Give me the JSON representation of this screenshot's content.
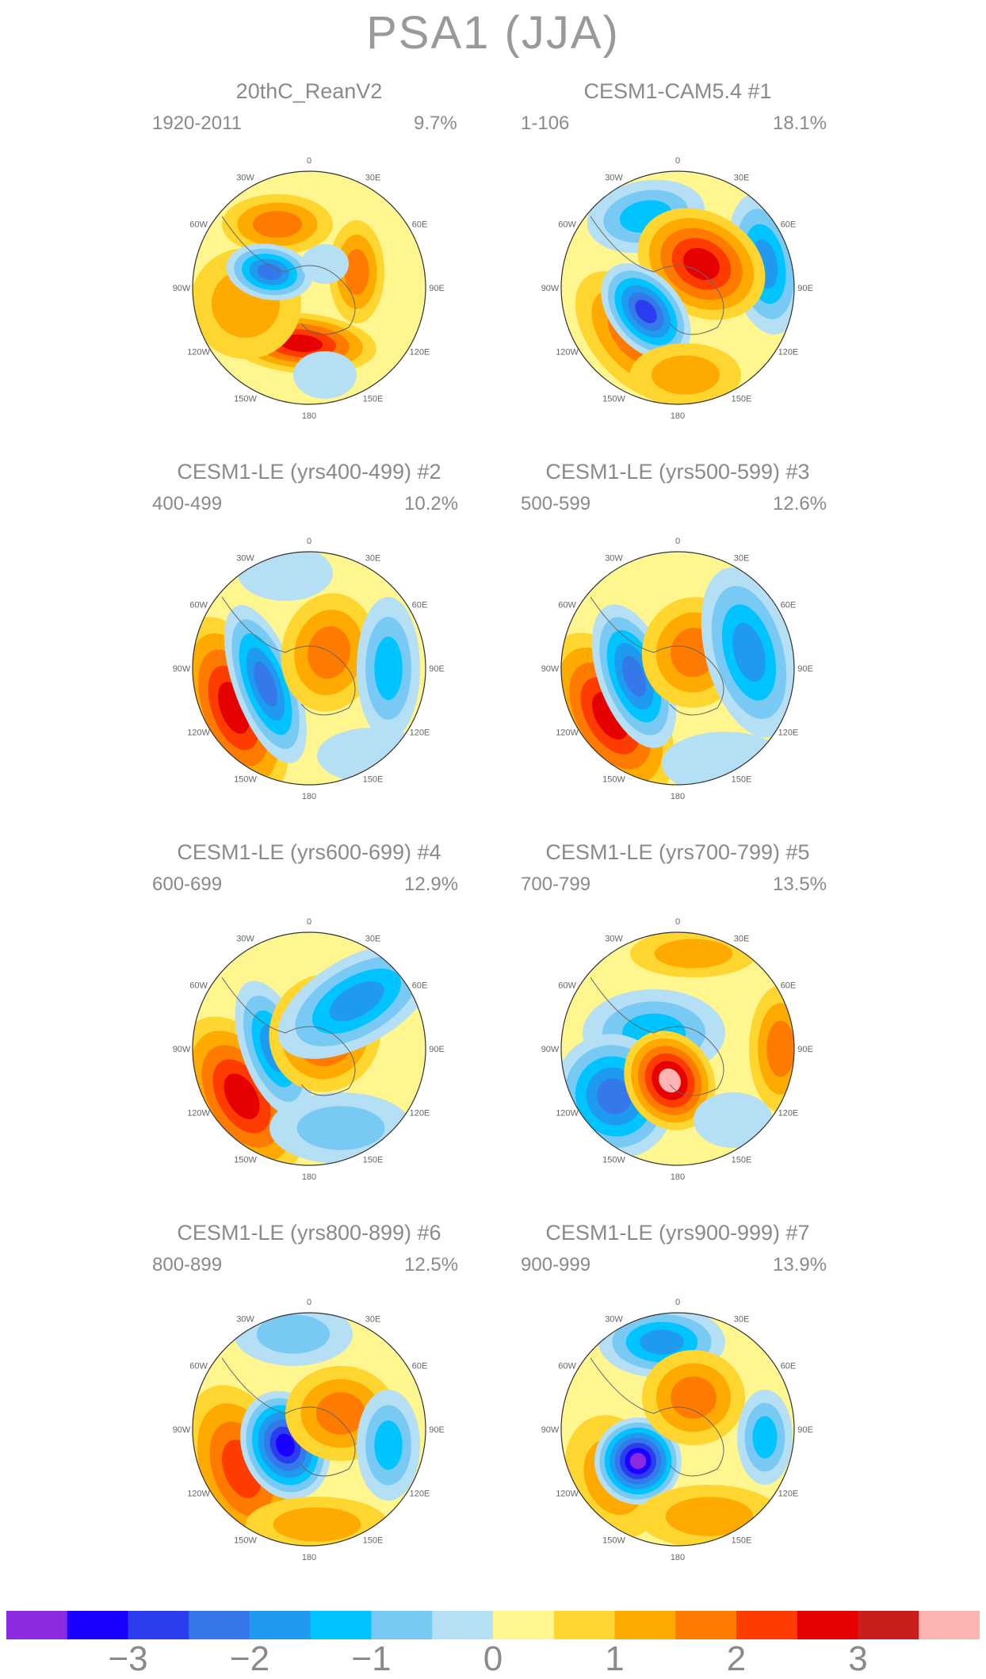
{
  "title": "PSA1 (JJA)",
  "panels": [
    {
      "title": "20thC_ReanV2",
      "years": "1920-2011",
      "percent": "9.7%"
    },
    {
      "title": "CESM1-CAM5.4        #1",
      "years": "1-106",
      "percent": "18.1%"
    },
    {
      "title": "CESM1-LE (yrs400-499) #2",
      "years": "400-499",
      "percent": "10.2%"
    },
    {
      "title": "CESM1-LE (yrs500-599) #3",
      "years": "500-599",
      "percent": "12.6%"
    },
    {
      "title": "CESM1-LE (yrs600-699) #4",
      "years": "600-699",
      "percent": "12.9%"
    },
    {
      "title": "CESM1-LE (yrs700-799) #5",
      "years": "700-799",
      "percent": "13.5%"
    },
    {
      "title": "CESM1-LE (yrs800-899) #6",
      "years": "800-899",
      "percent": "12.5%"
    },
    {
      "title": "CESM1-LE (yrs900-999) #7",
      "years": "900-999",
      "percent": "13.9%"
    }
  ],
  "longitude_labels": [
    "0",
    "30E",
    "60E",
    "90E",
    "120E",
    "150E",
    "180",
    "150W",
    "120W",
    "90W",
    "60W",
    "30W"
  ],
  "colorbar": {
    "colors": [
      "#8a2be2",
      "#1a00ff",
      "#2a3ef0",
      "#3478ea",
      "#1e9af0",
      "#00c4ff",
      "#78caf5",
      "#b5dff5",
      "#fff68f",
      "#ffd530",
      "#ffaa00",
      "#ff7b00",
      "#ff3c00",
      "#e60000",
      "#c81e1e",
      "#ffb4b4"
    ],
    "tick_labels": [
      "-3",
      "-2",
      "-1",
      "0",
      "1",
      "2",
      "3"
    ]
  }
}
